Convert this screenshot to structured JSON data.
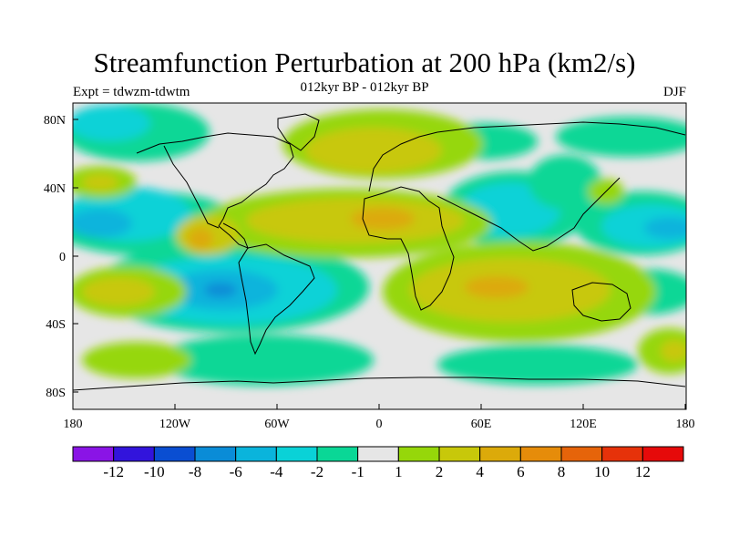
{
  "title": "Streamfunction Perturbation at 200 hPa (km2/s)",
  "subtitle": "012kyr BP - 012kyr BP",
  "experiment": "Expt = tdwzm-tdwtm",
  "season": "DJF",
  "lat_ticks": [
    "80N",
    "40N",
    "0",
    "40S",
    "80S"
  ],
  "lon_ticks": [
    "180",
    "120W",
    "60W",
    "0",
    "60E",
    "120E",
    "180"
  ],
  "colorbar": {
    "colors": [
      "#8a14e6",
      "#3214dc",
      "#0a4ed2",
      "#0a8cd7",
      "#0ab4dc",
      "#0ad2d7",
      "#0ad796",
      "#e6e6e6",
      "#96d70a",
      "#c8c80a",
      "#dcaa0a",
      "#e68c0a",
      "#e6640a",
      "#e6320a",
      "#e60a0a"
    ],
    "labels": [
      "-12",
      "-10",
      "-8",
      "-6",
      "-4",
      "-2",
      "-1",
      "1",
      "2",
      "4",
      "6",
      "8",
      "10",
      "12"
    ]
  }
}
